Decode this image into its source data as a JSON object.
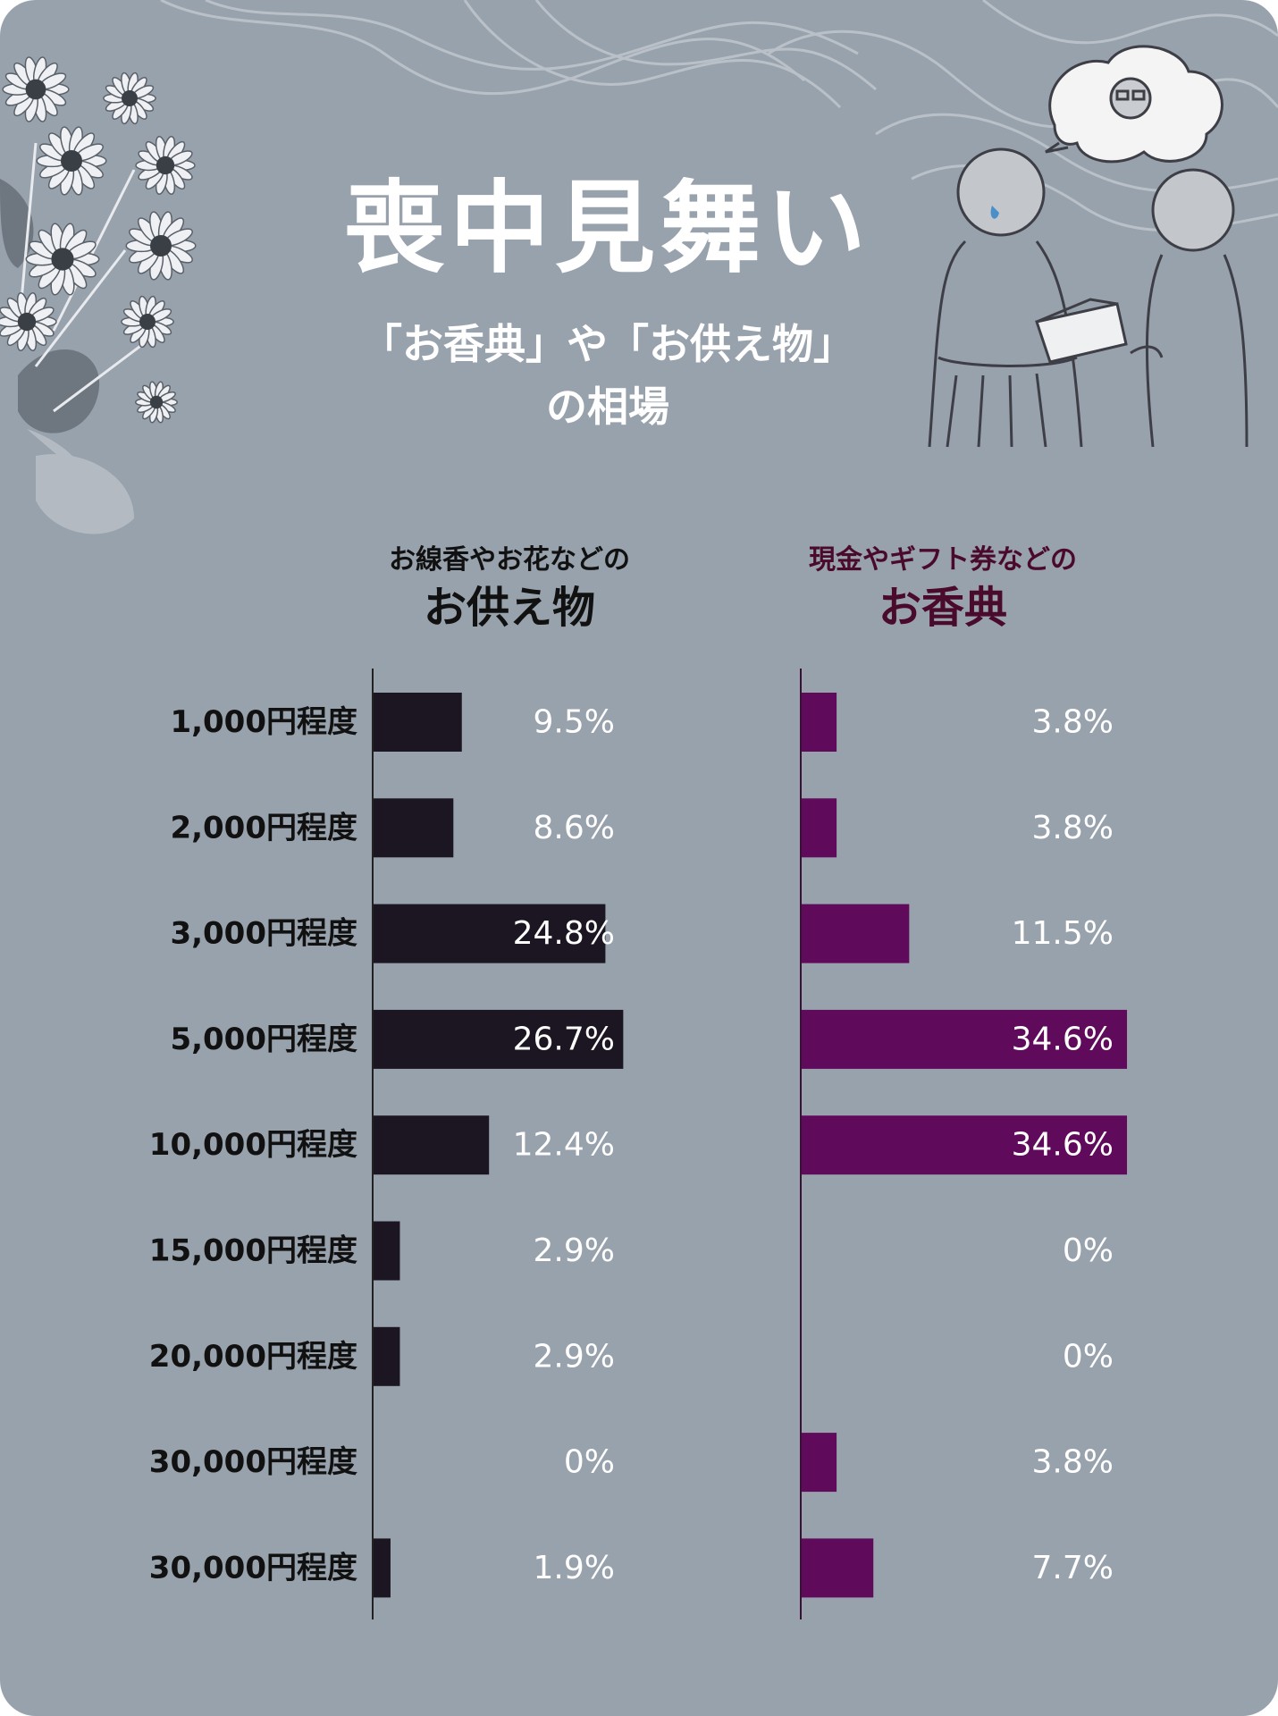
{
  "title": "喪中見舞い",
  "subtitle_line1": "「お香典」や「お供え物」",
  "subtitle_line2": "の相場",
  "colors": {
    "background": "#98a2ac",
    "offering_bar": "#1c1622",
    "koden_bar": "#600a5c",
    "koden_heading": "#4a0a2c",
    "text_dark": "#111111",
    "text_light": "#ffffff"
  },
  "chart_data": [
    {
      "type": "bar",
      "orientation": "horizontal",
      "subtitle": "お線香やお花などの",
      "title": "お供え物",
      "unit": "%",
      "categories": [
        "1,000円程度",
        "2,000円程度",
        "3,000円程度",
        "5,000円程度",
        "10,000円程度",
        "15,000円程度",
        "20,000円程度",
        "30,000円程度",
        "30,000円程度"
      ],
      "values": [
        9.5,
        8.6,
        24.8,
        26.7,
        12.4,
        2.9,
        2.9,
        0,
        1.9
      ],
      "labels": [
        "9.5%",
        "8.6%",
        "24.8%",
        "26.7%",
        "12.4%",
        "2.9%",
        "2.9%",
        "0%",
        "1.9%"
      ],
      "xlim": [
        0,
        26.7
      ]
    },
    {
      "type": "bar",
      "orientation": "horizontal",
      "subtitle": "現金やギフト券などの",
      "title": "お香典",
      "unit": "%",
      "categories": [
        "1,000円程度",
        "2,000円程度",
        "3,000円程度",
        "5,000円程度",
        "10,000円程度",
        "15,000円程度",
        "20,000円程度",
        "30,000円程度",
        "30,000円程度"
      ],
      "values": [
        3.8,
        3.8,
        11.5,
        34.6,
        34.6,
        0,
        0,
        3.8,
        7.7
      ],
      "labels": [
        "3.8%",
        "3.8%",
        "11.5%",
        "34.6%",
        "34.6%",
        "0%",
        "0%",
        "3.8%",
        "7.7%"
      ],
      "xlim": [
        0,
        34.6
      ]
    }
  ]
}
